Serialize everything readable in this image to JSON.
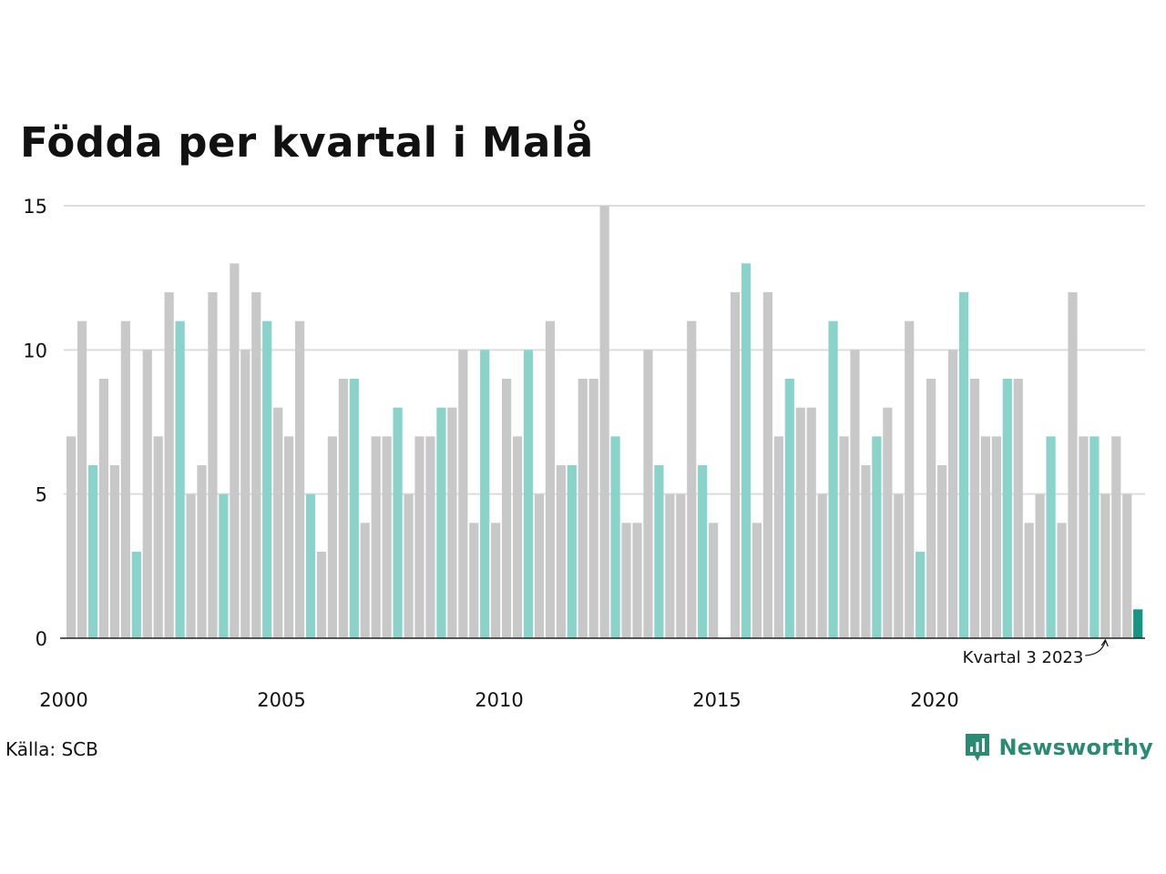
{
  "chart_data": {
    "type": "bar",
    "title": "Födda per kvartal i Malå",
    "xlabel": "",
    "ylabel": "",
    "ylim": [
      0,
      15
    ],
    "y_ticks": [
      0,
      5,
      10,
      15
    ],
    "x_tick_labels": [
      "2000",
      "2005",
      "2010",
      "2015",
      "2020"
    ],
    "first_year": 2000,
    "values": [
      7,
      11,
      6,
      9,
      6,
      11,
      3,
      10,
      7,
      12,
      11,
      5,
      6,
      12,
      5,
      13,
      10,
      12,
      11,
      8,
      7,
      11,
      5,
      3,
      7,
      9,
      9,
      4,
      7,
      7,
      8,
      5,
      7,
      7,
      8,
      8,
      10,
      4,
      10,
      4,
      9,
      7,
      10,
      5,
      11,
      6,
      6,
      9,
      9,
      15,
      7,
      4,
      4,
      10,
      6,
      5,
      5,
      11,
      6,
      4,
      0,
      12,
      13,
      4,
      12,
      7,
      9,
      8,
      8,
      5,
      11,
      7,
      10,
      6,
      7,
      8,
      5,
      11,
      3,
      9,
      6,
      10,
      12,
      9,
      7,
      7,
      9,
      9,
      4,
      5,
      7,
      4,
      12,
      7,
      7,
      5,
      7,
      5,
      1
    ],
    "highlight_quarter": 3,
    "annotation": {
      "text": "Kvartal 3 2023",
      "index": 95
    },
    "colors": {
      "default": "#c8c8c8",
      "highlight": "#89d3cb",
      "latest": "#159482",
      "grid": "#dddddd",
      "axis": "#222222"
    },
    "grid": true
  },
  "source": "Källa: SCB",
  "brand": {
    "name": "Newsworthy",
    "icon": "newsworthy-logo-icon",
    "color": "#2a8a73"
  }
}
